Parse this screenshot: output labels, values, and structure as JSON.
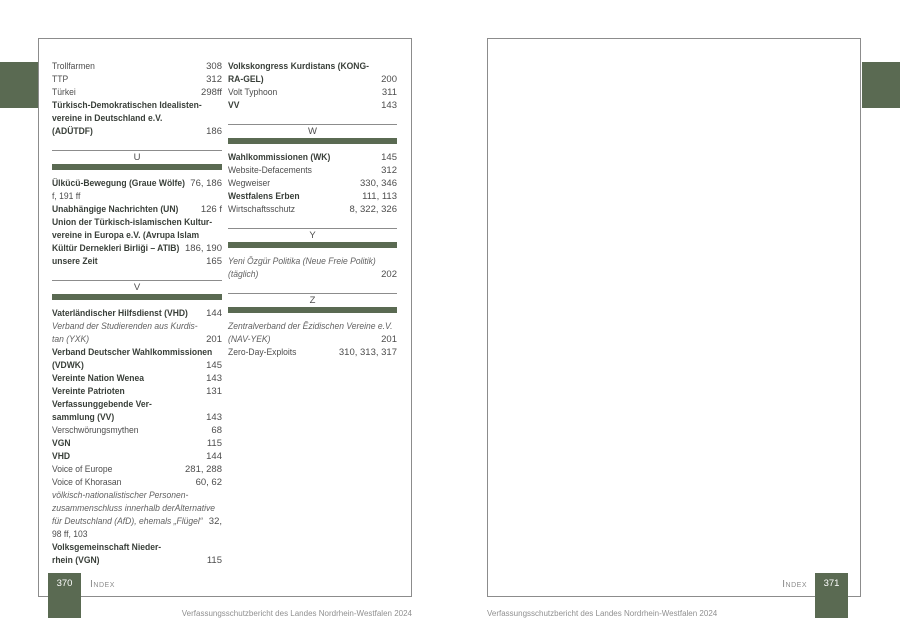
{
  "colors": {
    "accent_green": "#5a6a52"
  },
  "left_page": {
    "page_number": "370",
    "index_label": "Index",
    "footer": "Verfassungsschutzbericht des Landes Nordrhein-Westfalen 2024",
    "columns": [
      [
        {
          "type": "entry",
          "style": "regular",
          "lines": [
            {
              "text": "Trollfarmen",
              "num": "308"
            }
          ]
        },
        {
          "type": "entry",
          "style": "regular",
          "lines": [
            {
              "text": "TTP",
              "num": "312"
            }
          ]
        },
        {
          "type": "entry",
          "style": "regular",
          "lines": [
            {
              "text": "Türkei",
              "num": "298ff"
            }
          ]
        },
        {
          "type": "entry",
          "style": "bold",
          "lines": [
            {
              "text": "Türkisch-Demokratischen Idealisten-"
            },
            {
              "text": "vereine in Deutschland e.V."
            },
            {
              "text": "(ADÜTDF)",
              "num": "186"
            }
          ]
        },
        {
          "type": "section",
          "letter": "U"
        },
        {
          "type": "entry",
          "style": "bold",
          "lines": [
            {
              "text": "Ülkücü-Bewegung (Graue Wölfe)",
              "num": "76, 186"
            },
            {
              "text": "f, 191 ff",
              "cont": true
            }
          ]
        },
        {
          "type": "entry",
          "style": "bold",
          "lines": [
            {
              "text": "Unabhängige Nachrichten (UN)",
              "num": "126 f"
            }
          ]
        },
        {
          "type": "entry",
          "style": "bold",
          "lines": [
            {
              "text": "Union der Türkisch-islamischen Kultur-"
            },
            {
              "text": "vereine in Europa e.V. (Avrupa Islam"
            },
            {
              "text": "Kültür Dernekleri Birliği – ATIB)",
              "num": "186, 190"
            }
          ]
        },
        {
          "type": "entry",
          "style": "bold",
          "lines": [
            {
              "text": "unsere Zeit",
              "num": "165"
            }
          ]
        },
        {
          "type": "section",
          "letter": "V"
        },
        {
          "type": "entry",
          "style": "bold",
          "lines": [
            {
              "text": "Vaterländischer Hilfsdienst (VHD)",
              "num": "144"
            }
          ]
        },
        {
          "type": "entry",
          "style": "italic",
          "lines": [
            {
              "text": "Verband der Studierenden aus Kurdis-"
            },
            {
              "text": "tan (YXK)",
              "num": "201"
            }
          ]
        },
        {
          "type": "entry",
          "style": "bold",
          "lines": [
            {
              "text": "Verband Deutscher Wahlkommissionen"
            },
            {
              "text": "(VDWK)",
              "num": "145"
            }
          ]
        },
        {
          "type": "entry",
          "style": "bold",
          "lines": [
            {
              "text": "Vereinte Nation Wenea",
              "num": "143"
            }
          ]
        },
        {
          "type": "entry",
          "style": "bold",
          "lines": [
            {
              "text": "Vereinte Patrioten",
              "num": "131"
            }
          ]
        },
        {
          "type": "entry",
          "style": "bold",
          "lines": [
            {
              "text": "Verfassunggebende Ver-"
            },
            {
              "text": "sammlung (VV)",
              "num": "143"
            }
          ]
        },
        {
          "type": "entry",
          "style": "regular",
          "lines": [
            {
              "text": "Verschwörungsmythen",
              "num": "68"
            }
          ]
        },
        {
          "type": "entry",
          "style": "bold",
          "lines": [
            {
              "text": "VGN",
              "num": "115"
            }
          ]
        },
        {
          "type": "entry",
          "style": "bold",
          "lines": [
            {
              "text": "VHD",
              "num": "144"
            }
          ]
        },
        {
          "type": "entry",
          "style": "regular",
          "lines": [
            {
              "text": "Voice of Europe",
              "num": "281, 288"
            }
          ]
        },
        {
          "type": "entry",
          "style": "regular",
          "lines": [
            {
              "text": "Voice of Khorasan",
              "num": "60, 62"
            }
          ]
        },
        {
          "type": "entry",
          "style": "italic",
          "lines": [
            {
              "text": "völkisch-nationalistischer Personen-"
            },
            {
              "text": "zusammenschluss innerhalb derAlternative"
            },
            {
              "text": "für Deutschland (AfD), ehemals „Flügel“",
              "num": "32,"
            },
            {
              "text": "98 ff, 103",
              "cont": true
            }
          ]
        },
        {
          "type": "entry",
          "style": "bold",
          "lines": [
            {
              "text": "Volksgemeinschaft Nieder-"
            },
            {
              "text": "rhein (VGN)",
              "num": "115"
            }
          ]
        }
      ],
      [
        {
          "type": "entry",
          "style": "bold",
          "lines": [
            {
              "text": "Volkskongress Kurdistans (KONG-"
            },
            {
              "text": "RA-GEL)",
              "num": "200"
            }
          ]
        },
        {
          "type": "entry",
          "style": "regular",
          "lines": [
            {
              "text": "Volt Typhoon",
              "num": "311"
            }
          ]
        },
        {
          "type": "entry",
          "style": "bold",
          "lines": [
            {
              "text": "VV",
              "num": "143"
            }
          ]
        },
        {
          "type": "section",
          "letter": "W"
        },
        {
          "type": "entry",
          "style": "bold",
          "lines": [
            {
              "text": "Wahlkommissionen (WK)",
              "num": "145"
            }
          ]
        },
        {
          "type": "entry",
          "style": "regular",
          "lines": [
            {
              "text": "Website-Defacements",
              "num": "312"
            }
          ]
        },
        {
          "type": "entry",
          "style": "regular",
          "lines": [
            {
              "text": "Wegweiser",
              "num": "330, 346"
            }
          ]
        },
        {
          "type": "entry",
          "style": "bold",
          "lines": [
            {
              "text": "Westfalens Erben",
              "num": "111, 113"
            }
          ]
        },
        {
          "type": "entry",
          "style": "regular",
          "lines": [
            {
              "text": "Wirtschaftsschutz",
              "num": "8, 322, 326"
            }
          ]
        },
        {
          "type": "section",
          "letter": "Y"
        },
        {
          "type": "entry",
          "style": "italic",
          "lines": [
            {
              "text": "Yeni Özgür Politika (Neue Freie Politik)"
            },
            {
              "text": "(täglich)",
              "num": "202"
            }
          ]
        },
        {
          "type": "section",
          "letter": "Z"
        },
        {
          "type": "entry",
          "style": "italic",
          "lines": [
            {
              "text": "Zentralverband der Êzidischen Vereine e.V."
            },
            {
              "text": "(NAV-YEK)",
              "num": "201"
            }
          ]
        },
        {
          "type": "entry",
          "style": "regular",
          "lines": [
            {
              "text": "Zero-Day-Exploits",
              "num": "310, 313, 317"
            }
          ]
        }
      ]
    ]
  },
  "right_page": {
    "page_number": "371",
    "index_label": "Index",
    "footer": "Verfassungsschutzbericht des Landes Nordrhein-Westfalen 2024"
  }
}
